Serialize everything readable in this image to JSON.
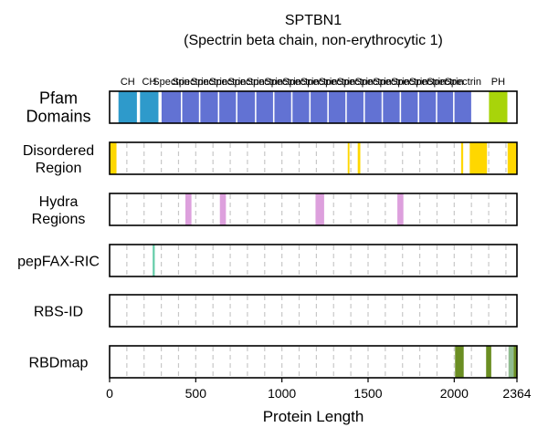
{
  "chart_data": {
    "type": "track",
    "title": "SPTBN1",
    "subtitle": "(Spectrin beta chain, non-erythrocytic 1)",
    "xlabel": "Protein Length",
    "xlim": [
      0,
      2364
    ],
    "xticks": [
      0,
      500,
      1000,
      1500,
      2000,
      2364
    ],
    "grid_dashed_every": 100,
    "tracks": [
      {
        "label": "Pfam\nDomains",
        "kind": "pfam",
        "features": [
          {
            "name": "CH",
            "start": 50,
            "end": 160,
            "color": "#2e9acb"
          },
          {
            "name": "CH",
            "start": 175,
            "end": 285,
            "color": "#2e9acb"
          },
          {
            "name": "Spectrin",
            "start": 300,
            "end": 415,
            "color": "#6272d3"
          },
          {
            "name": "Spectrin",
            "start": 420,
            "end": 520,
            "color": "#6272d3"
          },
          {
            "name": "Spectrin",
            "start": 525,
            "end": 630,
            "color": "#6272d3"
          },
          {
            "name": "Spectrin",
            "start": 635,
            "end": 735,
            "color": "#6272d3"
          },
          {
            "name": "Spectrin",
            "start": 740,
            "end": 845,
            "color": "#6272d3"
          },
          {
            "name": "Spectrin",
            "start": 850,
            "end": 950,
            "color": "#6272d3"
          },
          {
            "name": "Spectrin",
            "start": 955,
            "end": 1055,
            "color": "#6272d3"
          },
          {
            "name": "Spectrin",
            "start": 1060,
            "end": 1160,
            "color": "#6272d3"
          },
          {
            "name": "Spectrin",
            "start": 1165,
            "end": 1265,
            "color": "#6272d3"
          },
          {
            "name": "Spectrin",
            "start": 1270,
            "end": 1370,
            "color": "#6272d3"
          },
          {
            "name": "Spectrin",
            "start": 1375,
            "end": 1475,
            "color": "#6272d3"
          },
          {
            "name": "Spectrin",
            "start": 1480,
            "end": 1580,
            "color": "#6272d3"
          },
          {
            "name": "Spectrin",
            "start": 1585,
            "end": 1685,
            "color": "#6272d3"
          },
          {
            "name": "Spectrin",
            "start": 1690,
            "end": 1790,
            "color": "#6272d3"
          },
          {
            "name": "Spectrin",
            "start": 1795,
            "end": 1895,
            "color": "#6272d3"
          },
          {
            "name": "Spectrin",
            "start": 1900,
            "end": 1995,
            "color": "#6272d3"
          },
          {
            "name": "Spectrin",
            "start": 2000,
            "end": 2100,
            "color": "#6272d3"
          },
          {
            "name": "PH",
            "start": 2200,
            "end": 2310,
            "color": "#a8d40a"
          }
        ]
      },
      {
        "label": "Disordered\nRegion",
        "kind": "region",
        "features": [
          {
            "start": 0,
            "end": 40,
            "color": "#ffd700"
          },
          {
            "start": 1382,
            "end": 1392,
            "color": "#ffd700"
          },
          {
            "start": 1440,
            "end": 1455,
            "color": "#ffd700"
          },
          {
            "start": 2040,
            "end": 2052,
            "color": "#ffd700"
          },
          {
            "start": 2090,
            "end": 2190,
            "color": "#ffd700"
          },
          {
            "start": 2310,
            "end": 2364,
            "color": "#ffd700"
          }
        ]
      },
      {
        "label": "Hydra\nRegions",
        "kind": "region",
        "features": [
          {
            "start": 440,
            "end": 475,
            "color": "#dda0dd"
          },
          {
            "start": 640,
            "end": 675,
            "color": "#dda0dd"
          },
          {
            "start": 1195,
            "end": 1245,
            "color": "#dda0dd"
          },
          {
            "start": 1670,
            "end": 1705,
            "color": "#dda0dd"
          }
        ]
      },
      {
        "label": "pepFAX-RIC",
        "kind": "region",
        "features": [
          {
            "start": 250,
            "end": 262,
            "color": "#66cdaa"
          }
        ]
      },
      {
        "label": "RBS-ID",
        "kind": "region",
        "features": []
      },
      {
        "label": "RBDmap",
        "kind": "region",
        "features": [
          {
            "start": 2005,
            "end": 2055,
            "color": "#6b8e23"
          },
          {
            "start": 2185,
            "end": 2215,
            "color": "#6b8e23"
          },
          {
            "start": 2315,
            "end": 2345,
            "color": "#8fbc8f"
          },
          {
            "start": 2345,
            "end": 2364,
            "color": "#6b8e23"
          }
        ]
      }
    ]
  }
}
